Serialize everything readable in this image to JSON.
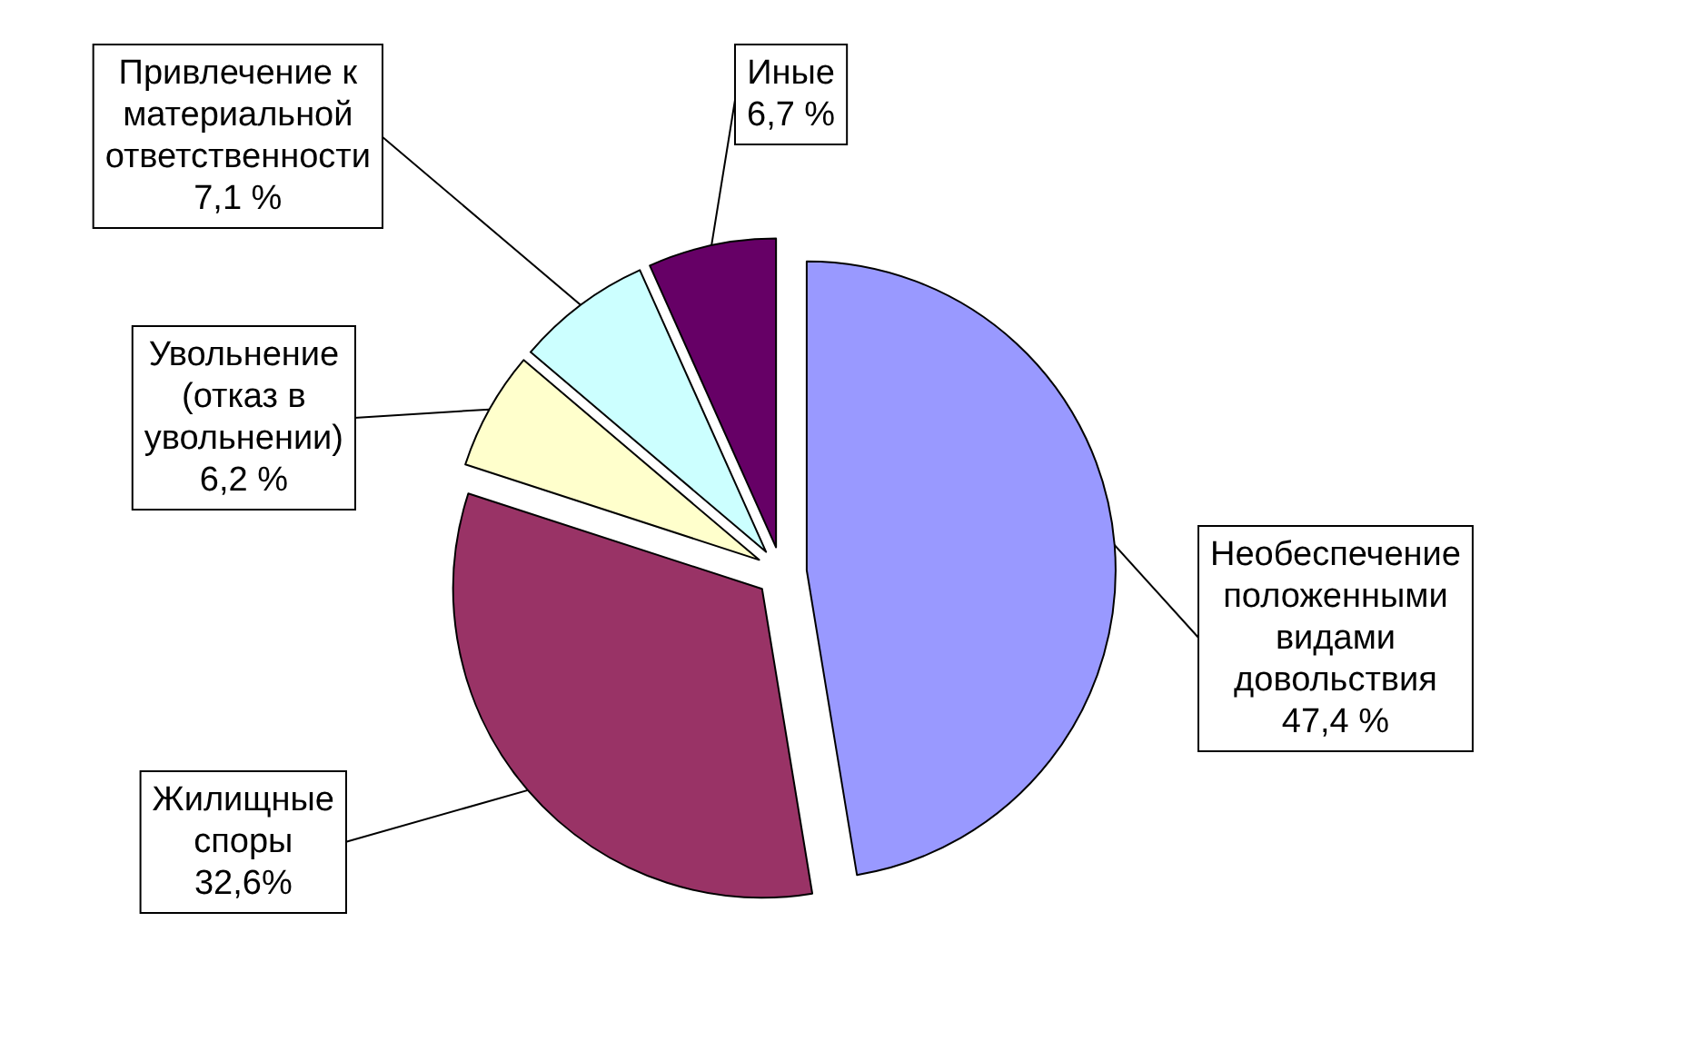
{
  "chart_data": {
    "type": "pie",
    "categories": [
      "Необеспечение положенными видами довольствия",
      "Жилищные споры",
      "Увольнение (отказ в увольнении)",
      "Привлечение к материальной ответственности",
      "Иные"
    ],
    "values": [
      47.4,
      32.6,
      6.2,
      7.1,
      6.7
    ],
    "colors": [
      "#9999ff",
      "#993366",
      "#ffffcc",
      "#ccffff",
      "#660066"
    ],
    "value_labels": [
      "47,4 %",
      "32,6%",
      "6,2 %",
      "7,1 %",
      "6,7 %"
    ]
  }
}
